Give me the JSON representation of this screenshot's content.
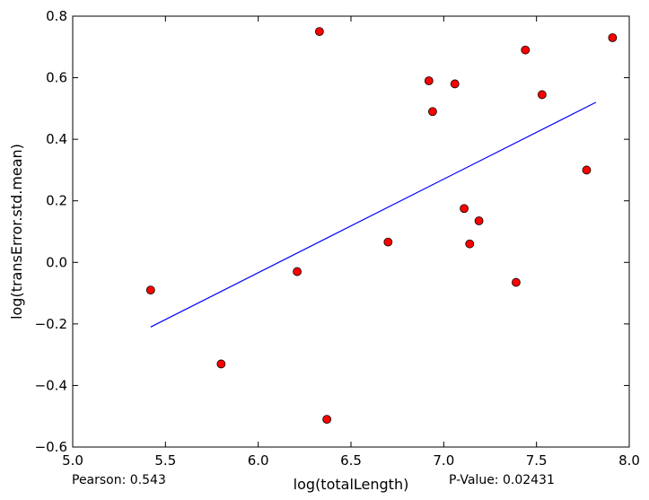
{
  "chart_data": {
    "type": "scatter",
    "xlabel": "log(totalLength)",
    "ylabel": "log(transError.std.mean)",
    "xlim": [
      5.0,
      8.0
    ],
    "ylim": [
      -0.6,
      0.8
    ],
    "x_ticks": [
      "5.0",
      "5.5",
      "6.0",
      "6.5",
      "7.0",
      "7.5",
      "8.0"
    ],
    "y_ticks": [
      "−0.6",
      "−0.4",
      "−0.2",
      "0.0",
      "0.2",
      "0.4",
      "0.6",
      "0.8"
    ],
    "grid": false,
    "points": [
      {
        "x": 5.42,
        "y": -0.09
      },
      {
        "x": 5.8,
        "y": -0.33
      },
      {
        "x": 6.21,
        "y": -0.03
      },
      {
        "x": 6.33,
        "y": 0.75
      },
      {
        "x": 6.37,
        "y": -0.51
      },
      {
        "x": 6.7,
        "y": 0.066
      },
      {
        "x": 6.92,
        "y": 0.59
      },
      {
        "x": 6.94,
        "y": 0.49
      },
      {
        "x": 7.06,
        "y": 0.58
      },
      {
        "x": 7.11,
        "y": 0.175
      },
      {
        "x": 7.14,
        "y": 0.06
      },
      {
        "x": 7.19,
        "y": 0.135
      },
      {
        "x": 7.39,
        "y": -0.065
      },
      {
        "x": 7.44,
        "y": 0.69
      },
      {
        "x": 7.53,
        "y": 0.545
      },
      {
        "x": 7.77,
        "y": 0.3
      },
      {
        "x": 7.91,
        "y": 0.73
      }
    ],
    "marker_color": "#ff0000",
    "fit_line": {
      "x": [
        5.42,
        7.82
      ],
      "y": [
        -0.21,
        0.52
      ],
      "color": "#0000ff"
    }
  },
  "annotations": {
    "pearson": "Pearson: 0.543",
    "pvalue": "P-Value: 0.02431"
  }
}
